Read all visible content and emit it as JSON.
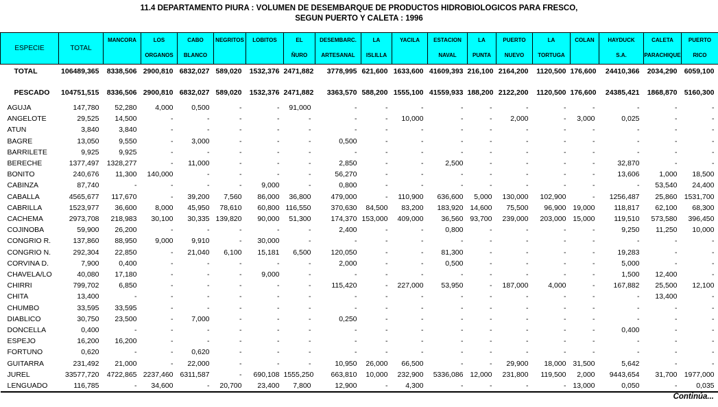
{
  "title": {
    "line1": "11.4 DEPARTAMENTO PIURA : VOLUMEN DE DESEMBARQUE DE PRODUCTOS HIDROBIOLOGICOS PARA FRESCO,",
    "line2": "SEGUN PUERTO Y CALETA : 1996"
  },
  "colors": {
    "header_bg": "#00FFFF",
    "border": "#000000",
    "text": "#000000",
    "background": "#FFFFFF"
  },
  "footer": {
    "continua": "Continúa..."
  },
  "table": {
    "columns": [
      {
        "id": "especie",
        "big": true,
        "lines": [
          "ESPECIE"
        ]
      },
      {
        "id": "total",
        "big": true,
        "lines": [
          "TOTAL"
        ]
      },
      {
        "id": "mancora",
        "big": false,
        "lines": [
          "MANCORA"
        ]
      },
      {
        "id": "los-organos",
        "big": false,
        "lines": [
          "LOS",
          "ORGANOS"
        ]
      },
      {
        "id": "cabo-blanco",
        "big": false,
        "lines": [
          "CABO",
          "BLANCO"
        ]
      },
      {
        "id": "negritos",
        "big": false,
        "lines": [
          "NEGRITOS"
        ]
      },
      {
        "id": "lobitos",
        "big": false,
        "lines": [
          "LOBITOS"
        ]
      },
      {
        "id": "el-nuro",
        "big": false,
        "lines": [
          "EL",
          "ÑURO"
        ]
      },
      {
        "id": "desembarc-artesanal",
        "big": false,
        "lines": [
          "DESEMBARC.",
          "ARTESANAL"
        ]
      },
      {
        "id": "la-islilla",
        "big": false,
        "lines": [
          "LA",
          "ISLILLA"
        ]
      },
      {
        "id": "yacila",
        "big": false,
        "lines": [
          "YACILA"
        ]
      },
      {
        "id": "estacion-naval",
        "big": false,
        "lines": [
          "ESTACION",
          "NAVAL"
        ]
      },
      {
        "id": "la-punta",
        "big": false,
        "lines": [
          "LA",
          "PUNTA"
        ]
      },
      {
        "id": "puerto-nuevo",
        "big": false,
        "lines": [
          "PUERTO",
          "NUEVO"
        ]
      },
      {
        "id": "la-tortuga",
        "big": false,
        "lines": [
          "LA",
          "TORTUGA"
        ]
      },
      {
        "id": "colan",
        "big": false,
        "lines": [
          "COLAN"
        ]
      },
      {
        "id": "hayduck-sa",
        "big": false,
        "lines": [
          "HAYDUCK",
          "S.A."
        ]
      },
      {
        "id": "caleta-parachique",
        "big": false,
        "lines": [
          "CALETA",
          "PARACHIQUE"
        ]
      },
      {
        "id": "puerto-rico",
        "big": false,
        "lines": [
          "PUERTO",
          "RICO"
        ]
      }
    ],
    "summary_rows": [
      {
        "label": "TOTAL",
        "values": [
          "106489,365",
          "8338,506",
          "2900,810",
          "6832,027",
          "589,020",
          "1532,376",
          "2471,882",
          "3778,995",
          "621,600",
          "1633,600",
          "41609,393",
          "216,100",
          "2164,200",
          "1120,500",
          "176,600",
          "24410,366",
          "2034,290",
          "6059,100"
        ]
      },
      {
        "label": "PESCADO",
        "values": [
          "104751,515",
          "8336,506",
          "2900,810",
          "6832,027",
          "589,020",
          "1532,376",
          "2471,882",
          "3363,570",
          "588,200",
          "1555,100",
          "41559,933",
          "188,200",
          "2122,200",
          "1120,500",
          "176,600",
          "24385,421",
          "1868,870",
          "5160,300"
        ]
      }
    ],
    "rows": [
      {
        "label": "AGUJA",
        "values": [
          "147,780",
          "52,280",
          "4,000",
          "0,500",
          "-",
          "-",
          "91,000",
          "-",
          "-",
          "-",
          "-",
          "-",
          "-",
          "-",
          "-",
          "-",
          "-",
          "-"
        ]
      },
      {
        "label": "ANGELOTE",
        "values": [
          "29,525",
          "14,500",
          "-",
          "-",
          "-",
          "-",
          "-",
          "-",
          "-",
          "10,000",
          "-",
          "-",
          "2,000",
          "-",
          "3,000",
          "0,025",
          "-",
          "-"
        ]
      },
      {
        "label": "ATUN",
        "values": [
          "3,840",
          "3,840",
          "-",
          "-",
          "-",
          "-",
          "-",
          "-",
          "-",
          "-",
          "-",
          "-",
          "-",
          "-",
          "-",
          "-",
          "-",
          "-"
        ]
      },
      {
        "label": "BAGRE",
        "values": [
          "13,050",
          "9,550",
          "-",
          "3,000",
          "-",
          "-",
          "-",
          "0,500",
          "-",
          "-",
          "-",
          "-",
          "-",
          "-",
          "-",
          "-",
          "-",
          "-"
        ]
      },
      {
        "label": "BARRILETE",
        "values": [
          "9,925",
          "9,925",
          "-",
          "-",
          "-",
          "-",
          "-",
          "-",
          "-",
          "-",
          "-",
          "-",
          "-",
          "-",
          "-",
          "-",
          "-",
          "-"
        ]
      },
      {
        "label": "BERECHE",
        "values": [
          "1377,497",
          "1328,277",
          "-",
          "11,000",
          "-",
          "-",
          "-",
          "2,850",
          "-",
          "-",
          "2,500",
          "-",
          "-",
          "-",
          "-",
          "32,870",
          "-",
          "-"
        ]
      },
      {
        "label": "BONITO",
        "values": [
          "240,676",
          "11,300",
          "140,000",
          "-",
          "-",
          "-",
          "-",
          "56,270",
          "-",
          "-",
          "-",
          "-",
          "-",
          "-",
          "-",
          "13,606",
          "1,000",
          "18,500"
        ]
      },
      {
        "label": "CABINZA",
        "values": [
          "87,740",
          "-",
          "-",
          "-",
          "-",
          "9,000",
          "-",
          "0,800",
          "-",
          "-",
          "-",
          "-",
          "-",
          "-",
          "-",
          "-",
          "53,540",
          "24,400"
        ]
      },
      {
        "label": "CABALLA",
        "values": [
          "4565,677",
          "117,670",
          "-",
          "39,200",
          "7,560",
          "86,000",
          "36,800",
          "479,000",
          "-",
          "110,900",
          "636,600",
          "5,000",
          "130,000",
          "102,900",
          "-",
          "1256,487",
          "25,860",
          "1531,700"
        ]
      },
      {
        "label": "CABRILLA",
        "values": [
          "1523,977",
          "36,600",
          "8,000",
          "45,950",
          "78,610",
          "60,800",
          "116,550",
          "370,630",
          "84,500",
          "83,200",
          "183,920",
          "14,600",
          "75,500",
          "96,900",
          "19,000",
          "118,817",
          "62,100",
          "68,300"
        ]
      },
      {
        "label": "CACHEMA",
        "values": [
          "2973,708",
          "218,983",
          "30,100",
          "30,335",
          "139,820",
          "90,000",
          "51,300",
          "174,370",
          "153,000",
          "409,000",
          "36,560",
          "93,700",
          "239,000",
          "203,000",
          "15,000",
          "119,510",
          "573,580",
          "396,450"
        ]
      },
      {
        "label": "COJINOBA",
        "values": [
          "59,900",
          "26,200",
          "-",
          "-",
          "-",
          "-",
          "-",
          "2,400",
          "-",
          "-",
          "0,800",
          "-",
          "-",
          "-",
          "-",
          "9,250",
          "11,250",
          "10,000"
        ]
      },
      {
        "label": "CONGRIO R.",
        "values": [
          "137,860",
          "88,950",
          "9,000",
          "9,910",
          "-",
          "30,000",
          "-",
          "-",
          "-",
          "-",
          "-",
          "-",
          "-",
          "-",
          "-",
          "-",
          "-",
          "-"
        ]
      },
      {
        "label": "CONGRIO N.",
        "values": [
          "292,304",
          "22,850",
          "-",
          "21,040",
          "6,100",
          "15,181",
          "6,500",
          "120,050",
          "-",
          "-",
          "81,300",
          "-",
          "-",
          "-",
          "-",
          "19,283",
          "-",
          "-"
        ]
      },
      {
        "label": "CORVINA D.",
        "values": [
          "7,900",
          "0,400",
          "-",
          "-",
          "-",
          "-",
          "-",
          "2,000",
          "-",
          "-",
          "0,500",
          "-",
          "-",
          "-",
          "-",
          "5,000",
          "-",
          "-"
        ]
      },
      {
        "label": "CHAVELA/LO",
        "values": [
          "40,080",
          "17,180",
          "-",
          "-",
          "-",
          "9,000",
          "-",
          "-",
          "-",
          "-",
          "-",
          "-",
          "-",
          "-",
          "-",
          "1,500",
          "12,400",
          "-"
        ]
      },
      {
        "label": "CHIRRI",
        "values": [
          "799,702",
          "6,850",
          "-",
          "-",
          "-",
          "-",
          "-",
          "115,420",
          "-",
          "227,000",
          "53,950",
          "-",
          "187,000",
          "4,000",
          "-",
          "167,882",
          "25,500",
          "12,100"
        ]
      },
      {
        "label": "CHITA",
        "values": [
          "13,400",
          "-",
          "-",
          "-",
          "-",
          "-",
          "-",
          "-",
          "-",
          "-",
          "-",
          "-",
          "-",
          "-",
          "-",
          "-",
          "13,400",
          "-"
        ]
      },
      {
        "label": "CHUMBO",
        "values": [
          "33,595",
          "33,595",
          "-",
          "-",
          "-",
          "-",
          "-",
          "-",
          "-",
          "-",
          "-",
          "-",
          "-",
          "-",
          "-",
          "-",
          "-",
          "-"
        ]
      },
      {
        "label": "DIABLICO",
        "values": [
          "30,750",
          "23,500",
          "-",
          "7,000",
          "-",
          "-",
          "-",
          "0,250",
          "-",
          "-",
          "-",
          "-",
          "-",
          "-",
          "-",
          "-",
          "-",
          "-"
        ]
      },
      {
        "label": "DONCELLA",
        "values": [
          "0,400",
          "-",
          "-",
          "-",
          "-",
          "-",
          "-",
          "-",
          "-",
          "-",
          "-",
          "-",
          "-",
          "-",
          "-",
          "0,400",
          "-",
          "-"
        ]
      },
      {
        "label": "ESPEJO",
        "values": [
          "16,200",
          "16,200",
          "-",
          "-",
          "-",
          "-",
          "-",
          "-",
          "-",
          "-",
          "-",
          "-",
          "-",
          "-",
          "-",
          "-",
          "-",
          "-"
        ]
      },
      {
        "label": "FORTUNO",
        "values": [
          "0,620",
          "-",
          "-",
          "0,620",
          "-",
          "-",
          "-",
          "-",
          "-",
          "-",
          "-",
          "-",
          "-",
          "-",
          "-",
          "-",
          "-",
          "-"
        ]
      },
      {
        "label": "GUITARRA",
        "values": [
          "231,492",
          "21,000",
          "-",
          "22,000",
          "-",
          "-",
          "-",
          "10,950",
          "26,000",
          "66,500",
          "-",
          "-",
          "29,900",
          "18,000",
          "31,500",
          "5,642",
          "-",
          "-"
        ]
      },
      {
        "label": "JUREL",
        "values": [
          "33577,720",
          "4722,865",
          "2237,460",
          "6311,587",
          "-",
          "690,108",
          "1555,250",
          "663,810",
          "10,000",
          "232,900",
          "5336,086",
          "12,000",
          "231,800",
          "119,500",
          "2,000",
          "9443,654",
          "31,700",
          "1977,000"
        ]
      },
      {
        "label": "LENGUADO",
        "values": [
          "116,785",
          "-",
          "34,600",
          "-",
          "20,700",
          "23,400",
          "7,800",
          "12,900",
          "-",
          "4,300",
          "-",
          "-",
          "-",
          "-",
          "13,000",
          "0,050",
          "-",
          "0,035"
        ]
      }
    ]
  }
}
